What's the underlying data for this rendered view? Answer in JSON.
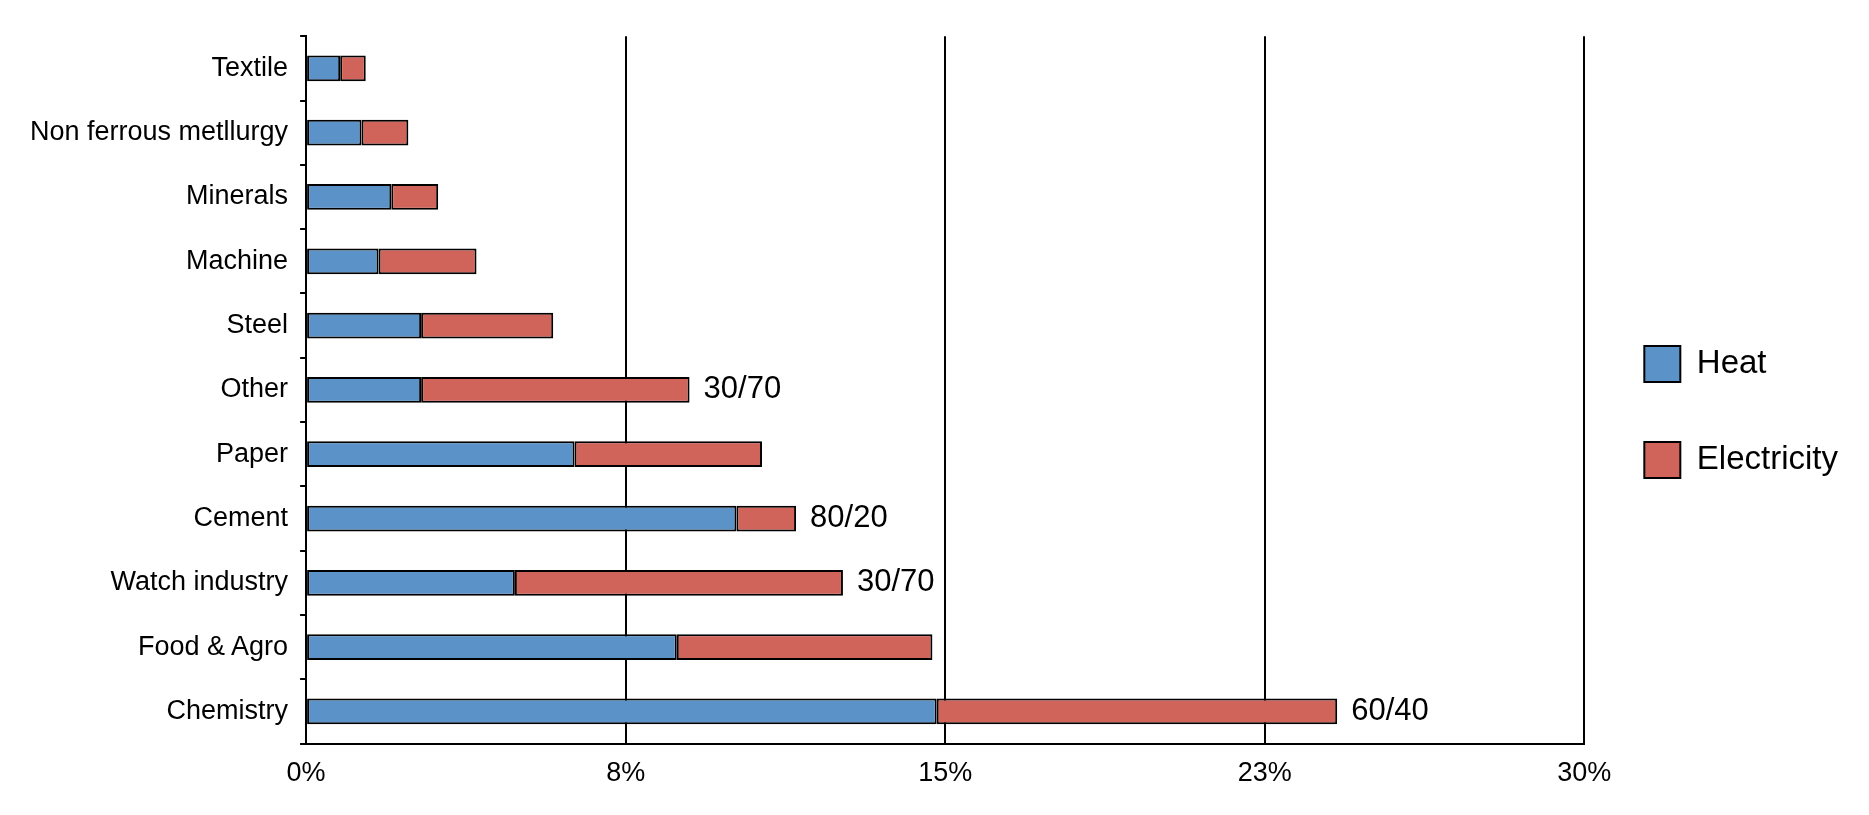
{
  "chart_data": {
    "type": "bar",
    "orientation": "horizontal",
    "stacked": true,
    "categories": [
      "Textile",
      "Non ferrous metllurgy",
      "Minerals",
      "Machine",
      "Steel",
      "Other",
      "Paper",
      "Cement",
      "Watch industry",
      "Food & Agro",
      "Chemistry"
    ],
    "series": [
      {
        "name": "Heat",
        "color": "#5b93c9",
        "values": [
          0.8,
          1.3,
          2.0,
          1.7,
          2.7,
          2.7,
          6.3,
          10.1,
          4.9,
          8.7,
          14.8
        ]
      },
      {
        "name": "Electricity",
        "color": "#d0635a",
        "values": [
          0.6,
          1.1,
          1.1,
          2.3,
          3.1,
          6.3,
          4.4,
          1.4,
          7.7,
          6.0,
          9.4
        ]
      }
    ],
    "xlim": [
      0,
      30
    ],
    "xticks": [
      {
        "value": 0,
        "label": "0%"
      },
      {
        "value": 7.5,
        "label": "8%"
      },
      {
        "value": 15,
        "label": "15%"
      },
      {
        "value": 22.5,
        "label": "23%"
      },
      {
        "value": 30,
        "label": "30%"
      }
    ],
    "grid": "x",
    "legend": "right",
    "annotations": [
      "30/70",
      "80/20",
      "30/70",
      "60/40"
    ]
  }
}
